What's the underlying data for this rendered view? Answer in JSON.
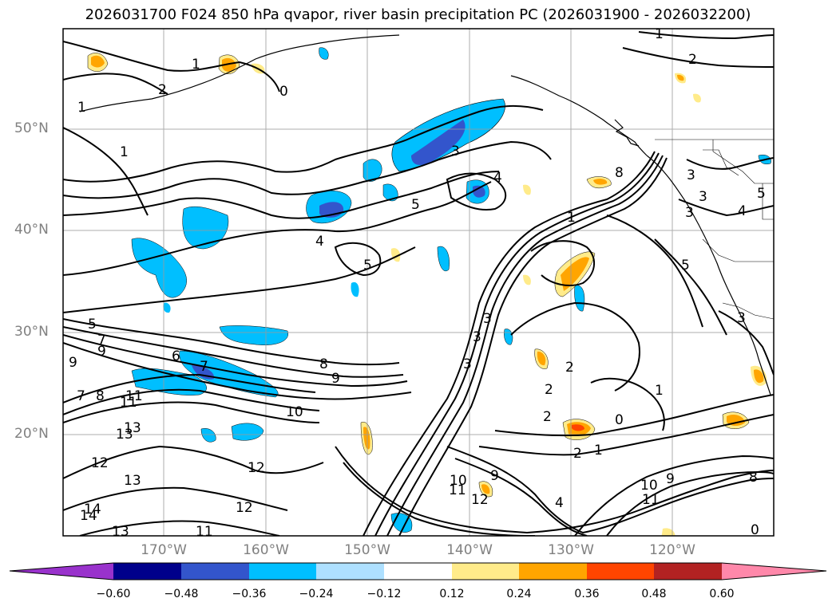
{
  "title": "2026031700 F024 850 hPa qvapor, river basin precipitation PC (2026031900 - 2026032200)",
  "lat_labels": [
    "50°N",
    "40°N",
    "30°N",
    "20°N"
  ],
  "lon_labels": [
    "170°W",
    "160°W",
    "150°W",
    "140°W",
    "130°W",
    "120°W"
  ],
  "colorbar": {
    "colors": [
      "#9932cc",
      "#00008b",
      "#3355cc",
      "#00bfff",
      "#aee0ff",
      "#ffffff",
      "#ffeb8a",
      "#ffa500",
      "#ff4500",
      "#b22222",
      "#ff88aa"
    ],
    "ticks": [
      "−0.60",
      "−0.48",
      "−0.36",
      "−0.24",
      "−0.12",
      "0.12",
      "0.24",
      "0.36",
      "0.48",
      "0.60"
    ]
  },
  "contour_labels": [
    "1",
    "2",
    "0",
    "1",
    "1",
    "2",
    "3",
    "4",
    "5",
    "4",
    "5",
    "6",
    "7",
    "8",
    "9",
    "10",
    "11",
    "12",
    "13",
    "14",
    "5",
    "7",
    "9",
    "9",
    "7",
    "8",
    "11",
    "13",
    "12",
    "13",
    "12",
    "11",
    "13",
    "14",
    "1",
    "3",
    "3",
    "2",
    "2",
    "2",
    "0",
    "1",
    "2",
    "10",
    "11",
    "12",
    "9",
    "4",
    "9",
    "10",
    "11",
    "8",
    "1",
    "3",
    "3",
    "5",
    "5",
    "4",
    "3",
    "3",
    "8",
    "1",
    "3",
    "0"
  ]
}
